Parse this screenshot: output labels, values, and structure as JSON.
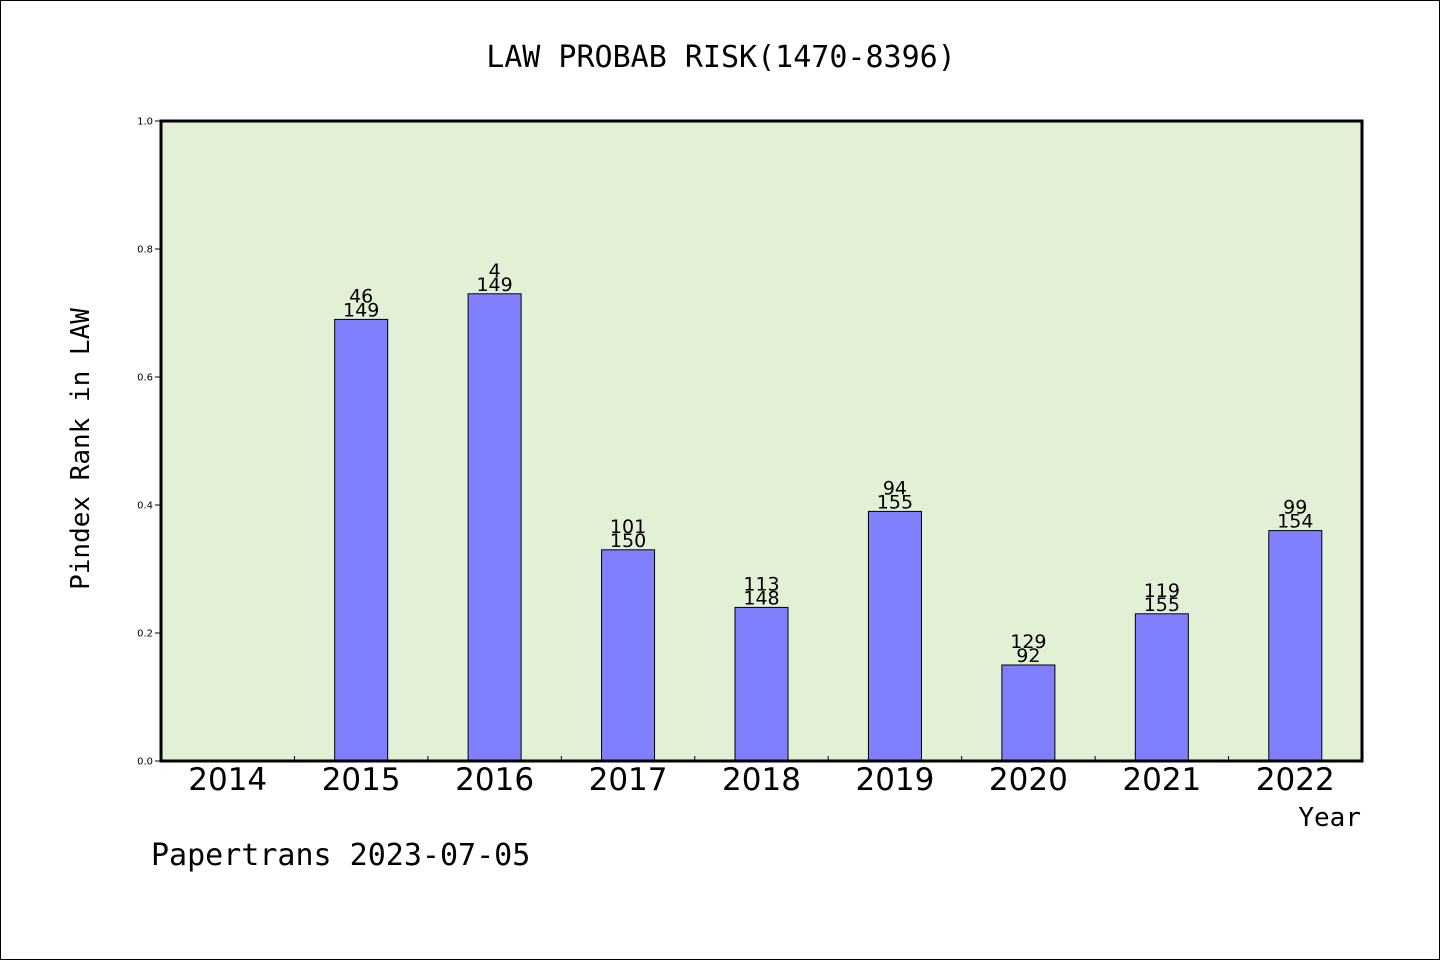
{
  "chart_data": {
    "type": "bar",
    "title": "LAW PROBAB RISK(1470-8396)",
    "xlabel": "Year",
    "ylabel": "Pindex Rank in LAW",
    "footer": "Papertrans 2023-07-05",
    "ylim": [
      0,
      1.0
    ],
    "yticks": [
      "0.0",
      "0.2",
      "0.4",
      "0.6",
      "0.8",
      "1.0"
    ],
    "categories": [
      "2014",
      "2015",
      "2016",
      "2017",
      "2018",
      "2019",
      "2020",
      "2021",
      "2022"
    ],
    "values": [
      null,
      0.69,
      0.73,
      0.33,
      0.24,
      0.39,
      0.15,
      0.23,
      0.36
    ],
    "labels_top": [
      "",
      "46",
      "4",
      "101",
      "113",
      "94",
      "129",
      "119",
      "99"
    ],
    "labels_bottom": [
      "",
      "149",
      "149",
      "150",
      "148",
      "155",
      "92",
      "155",
      "154"
    ],
    "grid": false,
    "colors": {
      "plot_background": "#e2f0d6",
      "bar_fill": "#8080ff",
      "bar_stroke": "#000000"
    }
  }
}
